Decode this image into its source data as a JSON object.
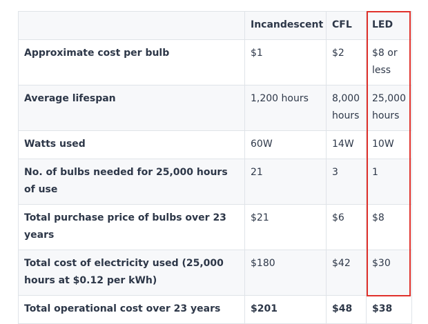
{
  "table": {
    "headers": [
      "",
      "Incandescent",
      "CFL",
      "LED"
    ],
    "rows": [
      {
        "label": "Approximate cost per bulb",
        "values": [
          "$1",
          "$2",
          "$8 or less"
        ]
      },
      {
        "label": "Average lifespan",
        "values": [
          "1,200 hours",
          "8,000 hours",
          "25,000 hours"
        ]
      },
      {
        "label": "Watts used",
        "values": [
          "60W",
          "14W",
          "10W"
        ]
      },
      {
        "label": "No. of bulbs needed for 25,000 hours of use",
        "values": [
          "21",
          "3",
          "1"
        ]
      },
      {
        "label": "Total purchase price of bulbs over 23 years",
        "values": [
          "$21",
          "$6",
          "$8"
        ]
      },
      {
        "label": "Total cost of electricity used (25,000 hours at $0.12 per kWh)",
        "values": [
          "$180",
          "$42",
          "$30"
        ]
      },
      {
        "label": "Total operational cost over 23 years",
        "values": [
          "$201",
          "$48",
          "$38"
        ]
      }
    ]
  },
  "highlight": {
    "column": "LED",
    "color": "#e0302a"
  }
}
